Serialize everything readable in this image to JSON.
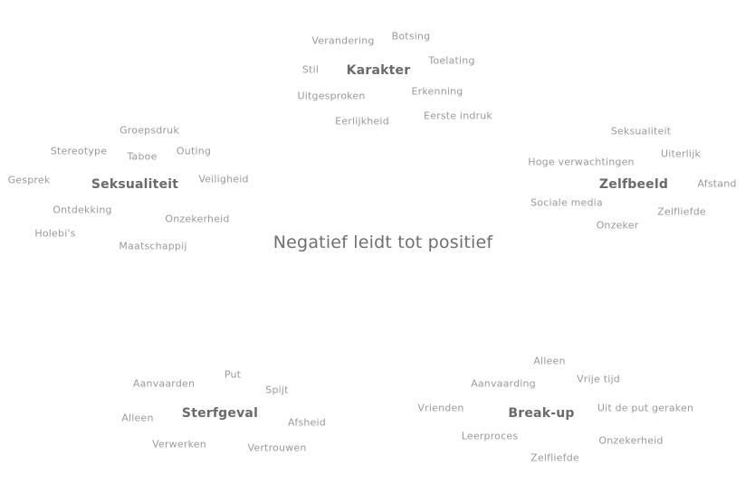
{
  "center_title": "Negatief leidt tot positief",
  "clusters": {
    "karakter": {
      "hub": "Karakter",
      "words": [
        "Verandering",
        "Botsing",
        "Stil",
        "Toelating",
        "Uitgesproken",
        "Erkenning",
        "Eerlijkheid",
        "Eerste indruk"
      ]
    },
    "seksualiteit": {
      "hub": "Seksualiteit",
      "words": [
        "Groepsdruk",
        "Stereotype",
        "Taboe",
        "Outing",
        "Gesprek",
        "Veiligheid",
        "Ontdekking",
        "Onzekerheid",
        "Holebi's",
        "Maatschappij"
      ]
    },
    "zelfbeeld": {
      "hub": "Zelfbeeld",
      "words": [
        "Seksualiteit",
        "Uiterlijk",
        "Hoge verwachtingen",
        "Afstand",
        "Sociale media",
        "Zelfliefde",
        "Onzeker"
      ]
    },
    "sterfgeval": {
      "hub": "Sterfgeval",
      "words": [
        "Put",
        "Aanvaarden",
        "Spijt",
        "Alleen",
        "Afsheid",
        "Verwerken",
        "Vertrouwen"
      ]
    },
    "breakup": {
      "hub": "Break-up",
      "words": [
        "Alleen",
        "Aanvaarding",
        "Vrije tijd",
        "Vrienden",
        "Uit de put geraken",
        "Leerproces",
        "Onzekerheid",
        "Zelfliefde"
      ]
    }
  }
}
